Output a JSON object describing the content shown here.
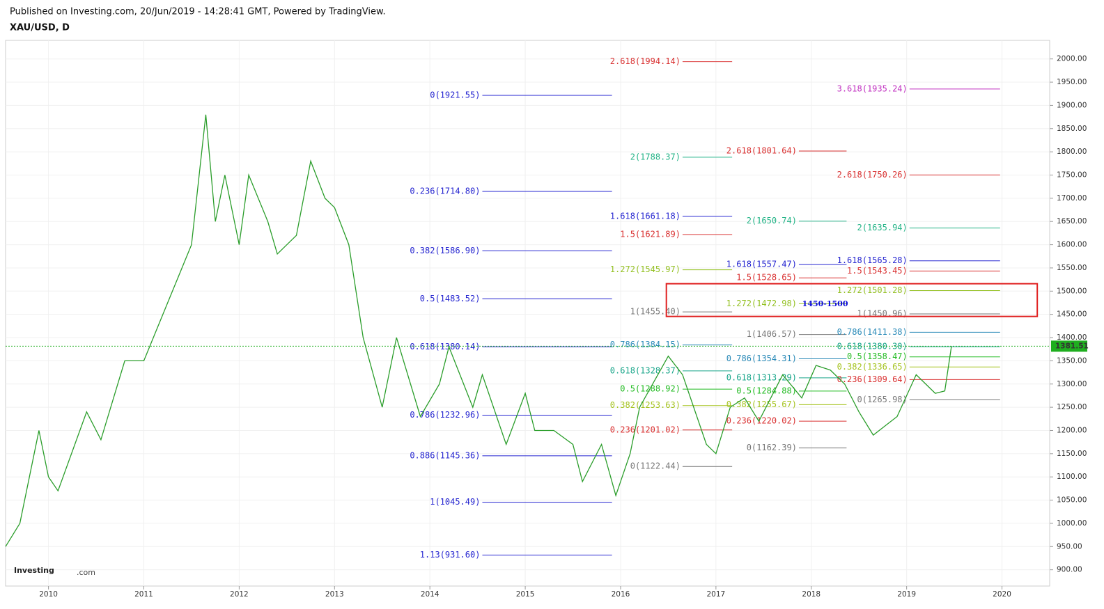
{
  "chart_data": {
    "type": "line",
    "title": "XAU/USD, D",
    "subtitle": "Published on Investing.com, 20/Jun/2019 - 14:28:41 GMT, Powered by TradingView.",
    "logo": {
      "brand": "Investing",
      "suffix": ".com"
    },
    "xlim": [
      2009.55,
      2020.5
    ],
    "ylim": [
      865,
      2040
    ],
    "xticks": [
      2010,
      2011,
      2012,
      2013,
      2014,
      2015,
      2016,
      2017,
      2018,
      2019,
      2020
    ],
    "yticks": [
      {
        "value": 900,
        "label": "900.00"
      },
      {
        "value": 950,
        "label": "950.00"
      },
      {
        "value": 1000,
        "label": "1000.00"
      },
      {
        "value": 1050,
        "label": "1050.00"
      },
      {
        "value": 1100,
        "label": "1100.00"
      },
      {
        "value": 1150,
        "label": "1150.00"
      },
      {
        "value": 1200,
        "label": "1200.00"
      },
      {
        "value": 1250,
        "label": "1250.00"
      },
      {
        "value": 1300,
        "label": "1300.00"
      },
      {
        "value": 1350,
        "label": "1350.00"
      },
      {
        "value": 1400,
        "label": "1400.00"
      },
      {
        "value": 1450,
        "label": "1450.00"
      },
      {
        "value": 1500,
        "label": "1500.00"
      },
      {
        "value": 1550,
        "label": "1550.00"
      },
      {
        "value": 1600,
        "label": "1600.00"
      },
      {
        "value": 1650,
        "label": "1650.00"
      },
      {
        "value": 1700,
        "label": "1700.00"
      },
      {
        "value": 1750,
        "label": "1750.00"
      },
      {
        "value": 1800,
        "label": "1800.00"
      },
      {
        "value": 1850,
        "label": "1850.00"
      },
      {
        "value": 1900,
        "label": "1900.00"
      },
      {
        "value": 1950,
        "label": "1950.00"
      },
      {
        "value": 2000,
        "label": "2000.00"
      }
    ],
    "grid": true,
    "x": [
      2009.55,
      2009.7,
      2009.9,
      2010.0,
      2010.1,
      2010.4,
      2010.55,
      2010.8,
      2011.0,
      2011.1,
      2011.3,
      2011.5,
      2011.65,
      2011.75,
      2011.85,
      2012.0,
      2012.1,
      2012.3,
      2012.4,
      2012.6,
      2012.75,
      2012.9,
      2013.0,
      2013.15,
      2013.3,
      2013.5,
      2013.65,
      2013.9,
      2014.1,
      2014.2,
      2014.45,
      2014.55,
      2014.8,
      2015.0,
      2015.1,
      2015.3,
      2015.5,
      2015.6,
      2015.8,
      2015.95,
      2016.1,
      2016.2,
      2016.5,
      2016.65,
      2016.9,
      2017.0,
      2017.15,
      2017.3,
      2017.45,
      2017.7,
      2017.9,
      2018.05,
      2018.2,
      2018.35,
      2018.5,
      2018.65,
      2018.9,
      2019.1,
      2019.3,
      2019.4,
      2019.47
    ],
    "series": [
      {
        "color": "#2a9d2a",
        "values": [
          950,
          1000,
          1200,
          1100,
          1070,
          1240,
          1180,
          1350,
          1350,
          1400,
          1500,
          1600,
          1880,
          1650,
          1750,
          1600,
          1750,
          1650,
          1580,
          1620,
          1780,
          1700,
          1680,
          1600,
          1400,
          1250,
          1400,
          1230,
          1300,
          1380,
          1250,
          1320,
          1170,
          1280,
          1200,
          1200,
          1170,
          1090,
          1170,
          1060,
          1150,
          1250,
          1360,
          1320,
          1170,
          1150,
          1250,
          1270,
          1220,
          1320,
          1270,
          1340,
          1330,
          1300,
          1240,
          1190,
          1230,
          1320,
          1280,
          1285,
          1381.51
        ]
      }
    ],
    "last_price": 1381.51,
    "last_price_color": "#1fae1f",
    "annotation": {
      "text": "1450-1500",
      "range": [
        1445.5,
        1516
      ],
      "x": [
        2016.48,
        2020.37
      ],
      "color": "#e02020",
      "text_color": "#0a0ad8"
    },
    "fib_groups": [
      {
        "x": [
          2014.55,
          2015.91
        ],
        "levels": [
          {
            "label": "0(1921.55)",
            "value": 1921.55,
            "color": "#2424d0"
          },
          {
            "label": "0.236(1714.80)",
            "value": 1714.8,
            "color": "#2424d0"
          },
          {
            "label": "0.382(1586.90)",
            "value": 1586.9,
            "color": "#2424d0"
          },
          {
            "label": "0.5(1483.52)",
            "value": 1483.52,
            "color": "#2424d0"
          },
          {
            "label": "0.618(1380.14)",
            "value": 1380.14,
            "color": "#2424d0"
          },
          {
            "label": "0.786(1232.96)",
            "value": 1232.96,
            "color": "#2424d0"
          },
          {
            "label": "0.886(1145.36)",
            "value": 1145.36,
            "color": "#2424d0"
          },
          {
            "label": "1(1045.49)",
            "value": 1045.49,
            "color": "#2424d0"
          },
          {
            "label": "1.13(931.60)",
            "value": 931.6,
            "color": "#2424d0"
          }
        ]
      },
      {
        "x": [
          2016.65,
          2017.17
        ],
        "levels": [
          {
            "label": "2.618(1994.14)",
            "value": 1994.14,
            "color": "#d93030"
          },
          {
            "label": "2(1788.37)",
            "value": 1788.37,
            "color": "#22b386"
          },
          {
            "label": "1.618(1661.18)",
            "value": 1661.18,
            "color": "#2424d0"
          },
          {
            "label": "1.5(1621.89)",
            "value": 1621.89,
            "color": "#d93030"
          },
          {
            "label": "1.272(1545.97)",
            "value": 1545.97,
            "color": "#93c020"
          },
          {
            "label": "1(1455.40)",
            "value": 1455.4,
            "color": "#777777"
          },
          {
            "label": "0.786(1384.15)",
            "value": 1384.15,
            "color": "#2a8ab8"
          },
          {
            "label": "0.618(1328.37)",
            "value": 1328.37,
            "color": "#17a589"
          },
          {
            "label": "0.5(1288.92)",
            "value": 1288.92,
            "color": "#22bb22"
          },
          {
            "label": "0.382(1253.63)",
            "value": 1253.63,
            "color": "#a5c31f"
          },
          {
            "label": "0.236(1201.02)",
            "value": 1201.02,
            "color": "#d93030"
          },
          {
            "label": "0(1122.44)",
            "value": 1122.44,
            "color": "#777777"
          }
        ]
      },
      {
        "x": [
          2017.87,
          2018.37
        ],
        "levels": [
          {
            "label": "2.618(1801.64)",
            "value": 1801.64,
            "color": "#d93030"
          },
          {
            "label": "2(1650.74)",
            "value": 1650.74,
            "color": "#22b386"
          },
          {
            "label": "1.618(1557.47)",
            "value": 1557.47,
            "color": "#2424d0"
          },
          {
            "label": "1.5(1528.65)",
            "value": 1528.65,
            "color": "#d93030"
          },
          {
            "label": "1.272(1472.98)",
            "value": 1472.98,
            "color": "#93c020"
          },
          {
            "label": "1(1406.57)",
            "value": 1406.57,
            "color": "#777777"
          },
          {
            "label": "0.786(1354.31)",
            "value": 1354.31,
            "color": "#2a8ab8"
          },
          {
            "label": "0.618(1313.29)",
            "value": 1313.29,
            "color": "#17a589"
          },
          {
            "label": "0.5(1284.88)",
            "value": 1284.88,
            "color": "#22bb22"
          },
          {
            "label": "0.382(1255.67)",
            "value": 1255.67,
            "color": "#a5c31f"
          },
          {
            "label": "0.236(1220.02)",
            "value": 1220.02,
            "color": "#d93030"
          },
          {
            "label": "0(1162.39)",
            "value": 1162.39,
            "color": "#777777"
          }
        ]
      },
      {
        "x": [
          2019.03,
          2019.98
        ],
        "levels": [
          {
            "label": "3.618(1935.24)",
            "value": 1935.24,
            "color": "#c030c0"
          },
          {
            "label": "2.618(1750.26)",
            "value": 1750.26,
            "color": "#d93030"
          },
          {
            "label": "2(1635.94)",
            "value": 1635.94,
            "color": "#22b386"
          },
          {
            "label": "1.618(1565.28)",
            "value": 1565.28,
            "color": "#2424d0"
          },
          {
            "label": "1.5(1543.45)",
            "value": 1543.45,
            "color": "#d93030"
          },
          {
            "label": "1.272(1501.28)",
            "value": 1501.28,
            "color": "#93c020"
          },
          {
            "label": "1(1450.96)",
            "value": 1450.96,
            "color": "#777777"
          },
          {
            "label": "0.786(1411.38)",
            "value": 1411.38,
            "color": "#2a8ab8"
          },
          {
            "label": "0.618(1380.30)",
            "value": 1380.3,
            "color": "#17a589"
          },
          {
            "label": "0.5(1358.47)",
            "value": 1358.47,
            "color": "#22bb22"
          },
          {
            "label": "0.382(1336.65)",
            "value": 1336.65,
            "color": "#a5c31f"
          },
          {
            "label": "0.236(1309.64)",
            "value": 1309.64,
            "color": "#d93030"
          },
          {
            "label": "0(1265.98)",
            "value": 1265.98,
            "color": "#777777"
          }
        ]
      }
    ]
  }
}
